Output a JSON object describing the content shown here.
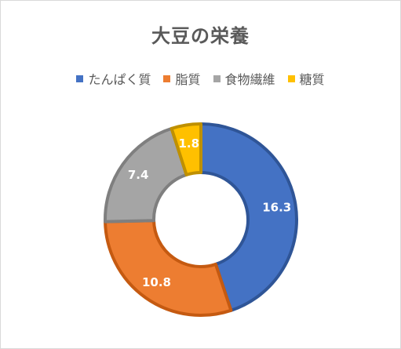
{
  "chart_data": {
    "type": "donut",
    "title": "大豆の栄養",
    "legend_position": "top",
    "categories": [
      "たんぱく質",
      "脂質",
      "食物繊維",
      "糖質"
    ],
    "values": [
      16.3,
      10.8,
      7.4,
      1.8
    ],
    "data_labels": [
      "16.3",
      "10.8",
      "7.4",
      "1.8"
    ],
    "colors": [
      "#4472c4",
      "#ed7d31",
      "#a5a5a5",
      "#ffc000"
    ],
    "border_colors": [
      "#2f5597",
      "#c55a11",
      "#7f7f7f",
      "#bf9000"
    ]
  }
}
